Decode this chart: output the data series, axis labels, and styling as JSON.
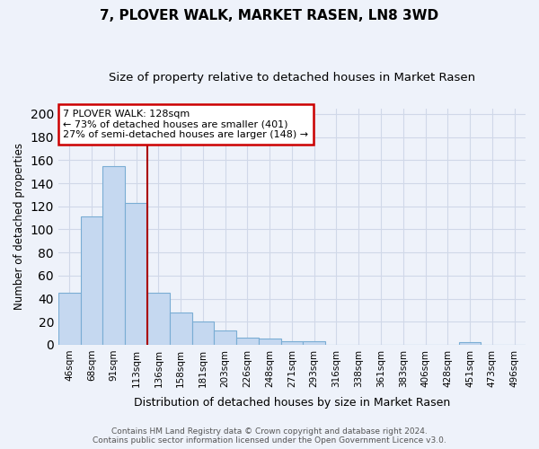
{
  "title": "7, PLOVER WALK, MARKET RASEN, LN8 3WD",
  "subtitle": "Size of property relative to detached houses in Market Rasen",
  "xlabel": "Distribution of detached houses by size in Market Rasen",
  "ylabel": "Number of detached properties",
  "categories": [
    "46sqm",
    "68sqm",
    "91sqm",
    "113sqm",
    "136sqm",
    "158sqm",
    "181sqm",
    "203sqm",
    "226sqm",
    "248sqm",
    "271sqm",
    "293sqm",
    "316sqm",
    "338sqm",
    "361sqm",
    "383sqm",
    "406sqm",
    "428sqm",
    "451sqm",
    "473sqm",
    "496sqm"
  ],
  "values": [
    45,
    111,
    155,
    123,
    45,
    28,
    20,
    12,
    6,
    5,
    3,
    3,
    0,
    0,
    0,
    0,
    0,
    0,
    2,
    0,
    0
  ],
  "bar_color": "#c5d8f0",
  "bar_edge_color": "#7aadd4",
  "vline_x_idx": 3.5,
  "vline_color": "#aa0000",
  "annotation_line1": "7 PLOVER WALK: 128sqm",
  "annotation_line2": "← 73% of detached houses are smaller (401)",
  "annotation_line3": "27% of semi-detached houses are larger (148) →",
  "annotation_box_color": "#ffffff",
  "annotation_box_edge": "#cc0000",
  "footer": "Contains HM Land Registry data © Crown copyright and database right 2024.\nContains public sector information licensed under the Open Government Licence v3.0.",
  "ylim": [
    0,
    205
  ],
  "yticks": [
    0,
    20,
    40,
    60,
    80,
    100,
    120,
    140,
    160,
    180,
    200
  ],
  "bg_color": "#eef2fa",
  "title_fontsize": 11,
  "subtitle_fontsize": 9.5,
  "grid_color": "#d0d8e8"
}
